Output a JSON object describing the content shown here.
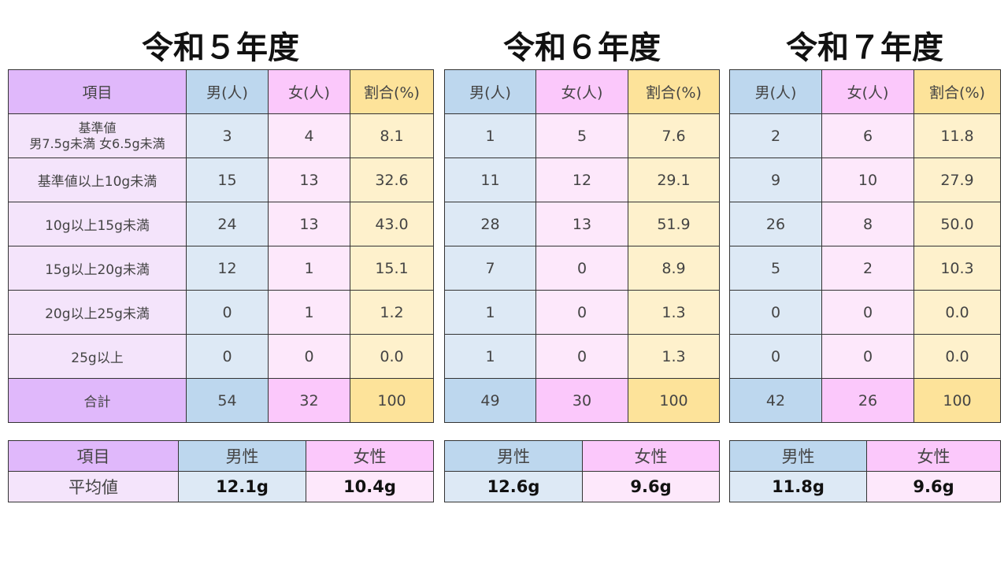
{
  "years": [
    {
      "title": "令和５年度",
      "headers": [
        "項目",
        "男(人)",
        "女(人)",
        "割合(%)"
      ],
      "rows": [
        {
          "label": "基準値\n男7.5g未満 女6.5g未満",
          "male": "3",
          "female": "4",
          "ratio": "8.1"
        },
        {
          "label": "基準値以上10g未満",
          "male": "15",
          "female": "13",
          "ratio": "32.6"
        },
        {
          "label": "10g以上15g未満",
          "male": "24",
          "female": "13",
          "ratio": "43.0"
        },
        {
          "label": "15g以上20g未満",
          "male": "12",
          "female": "1",
          "ratio": "15.1"
        },
        {
          "label": "20g以上25g未満",
          "male": "0",
          "female": "1",
          "ratio": "1.2"
        },
        {
          "label": "25g以上",
          "male": "0",
          "female": "0",
          "ratio": "0.0"
        }
      ],
      "total": {
        "label": "合計",
        "male": "54",
        "female": "32",
        "ratio": "100"
      },
      "average": {
        "headers": [
          "項目",
          "男性",
          "女性"
        ],
        "label": "平均値",
        "male": "12.1g",
        "female": "10.4g"
      }
    },
    {
      "title": "令和６年度",
      "headers": [
        "男(人)",
        "女(人)",
        "割合(%)"
      ],
      "rows": [
        {
          "male": "1",
          "female": "5",
          "ratio": "7.6"
        },
        {
          "male": "11",
          "female": "12",
          "ratio": "29.1"
        },
        {
          "male": "28",
          "female": "13",
          "ratio": "51.9"
        },
        {
          "male": "7",
          "female": "0",
          "ratio": "8.9"
        },
        {
          "male": "1",
          "female": "0",
          "ratio": "1.3"
        },
        {
          "male": "1",
          "female": "0",
          "ratio": "1.3"
        }
      ],
      "total": {
        "male": "49",
        "female": "30",
        "ratio": "100"
      },
      "average": {
        "headers": [
          "男性",
          "女性"
        ],
        "male": "12.6g",
        "female": "9.6g"
      }
    },
    {
      "title": "令和７年度",
      "headers": [
        "男(人)",
        "女(人)",
        "割合(%)"
      ],
      "rows": [
        {
          "male": "2",
          "female": "6",
          "ratio": "11.8"
        },
        {
          "male": "9",
          "female": "10",
          "ratio": "27.9"
        },
        {
          "male": "26",
          "female": "8",
          "ratio": "50.0"
        },
        {
          "male": "5",
          "female": "2",
          "ratio": "10.3"
        },
        {
          "male": "0",
          "female": "0",
          "ratio": "0.0"
        },
        {
          "male": "0",
          "female": "0",
          "ratio": "0.0"
        }
      ],
      "total": {
        "male": "42",
        "female": "26",
        "ratio": "100"
      },
      "average": {
        "headers": [
          "男性",
          "女性"
        ],
        "male": "11.8g",
        "female": "9.6g"
      }
    }
  ]
}
